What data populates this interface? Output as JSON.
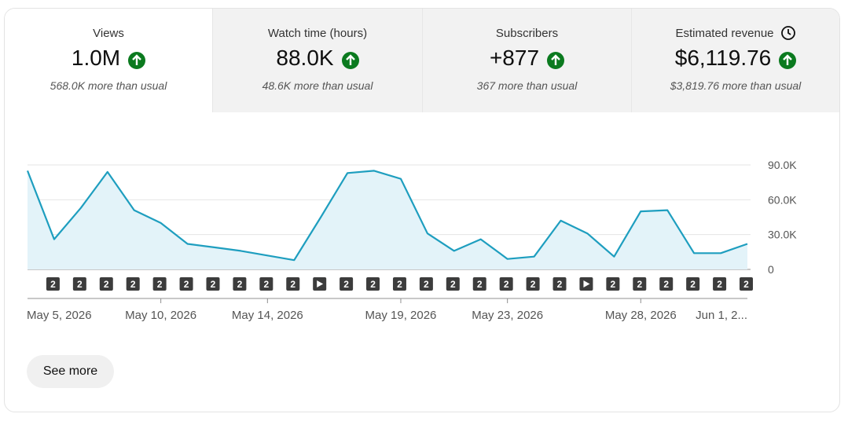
{
  "cards": [
    {
      "label": "Views",
      "value": "1.0M",
      "delta": "568.0K more than usual"
    },
    {
      "label": "Watch time (hours)",
      "value": "88.0K",
      "delta": "48.6K more than usual"
    },
    {
      "label": "Subscribers",
      "value": "+877",
      "delta": "367 more than usual"
    },
    {
      "label": "Estimated revenue",
      "value": "$6,119.76",
      "delta": "$3,819.76 more than usual"
    }
  ],
  "chart_data": {
    "type": "line",
    "color": "#1e9ebf",
    "area": true,
    "grid": true,
    "categories": [
      "May 5, 2026",
      null,
      null,
      null,
      null,
      "May 10, 2026",
      null,
      null,
      null,
      "May 14, 2026",
      null,
      null,
      null,
      null,
      "May 19, 2026",
      null,
      null,
      null,
      "May 23, 2026",
      null,
      null,
      null,
      null,
      "May 28, 2026",
      null,
      null,
      null,
      "Jun 1, 2..."
    ],
    "values": [
      85000,
      26000,
      53000,
      84000,
      51000,
      40000,
      22000,
      19000,
      16000,
      12000,
      8000,
      45000,
      83000,
      85000,
      78000,
      31000,
      16000,
      26000,
      9000,
      11000,
      42000,
      31000,
      11000,
      50000,
      51000,
      14000,
      14000,
      22000
    ],
    "ylim": [
      0,
      90000
    ],
    "yticks": [
      0,
      {
        "value": 30000,
        "label": "30.0K"
      },
      {
        "value": 60000,
        "label": "60.0K"
      },
      {
        "value": 90000,
        "label": "90.0K"
      }
    ]
  },
  "chart_markers": [
    "2",
    "2",
    "2",
    "2",
    "2",
    "2",
    "2",
    "2",
    "2",
    "2",
    null,
    "2",
    "2",
    "2",
    "2",
    "2",
    "2",
    "2",
    "2",
    "2",
    null,
    "2",
    "2",
    "2",
    "2",
    "2",
    "2"
  ],
  "see_more": "See more"
}
